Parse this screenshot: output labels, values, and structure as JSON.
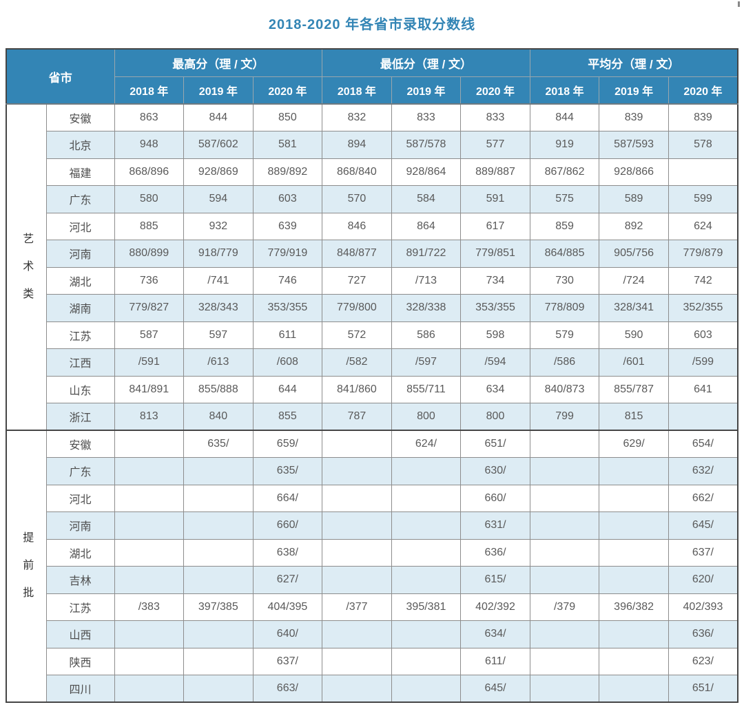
{
  "page": {
    "title": "2018-2020 年各省市录取分数线"
  },
  "colors": {
    "header_bg": "#3385b5",
    "title_text": "#3385b5",
    "alt_row_bg": "#ddecf4",
    "cell_text": "#595959",
    "inner_border": "#8c8c8c",
    "outer_border": "#454545"
  },
  "table": {
    "header": {
      "province_label": "省市",
      "groups": [
        {
          "label": "最高分（理 / 文）"
        },
        {
          "label": "最低分（理 / 文）"
        },
        {
          "label": "平均分（理 / 文）"
        }
      ],
      "years": [
        "2018 年",
        "2019 年",
        "2020 年"
      ]
    },
    "sections": [
      {
        "category": "艺术类",
        "rows": [
          {
            "province": "安徽",
            "values": [
              "863",
              "844",
              "850",
              "832",
              "833",
              "833",
              "844",
              "839",
              "839"
            ]
          },
          {
            "province": "北京",
            "values": [
              "948",
              "587/602",
              "581",
              "894",
              "587/578",
              "577",
              "919",
              "587/593",
              "578"
            ]
          },
          {
            "province": "福建",
            "values": [
              "868/896",
              "928/869",
              "889/892",
              "868/840",
              "928/864",
              "889/887",
              "867/862",
              "928/866",
              ""
            ]
          },
          {
            "province": "广东",
            "values": [
              "580",
              "594",
              "603",
              "570",
              "584",
              "591",
              "575",
              "589",
              "599"
            ]
          },
          {
            "province": "河北",
            "values": [
              "885",
              "932",
              "639",
              "846",
              "864",
              "617",
              "859",
              "892",
              "624"
            ]
          },
          {
            "province": "河南",
            "values": [
              "880/899",
              "918/779",
              "779/919",
              "848/877",
              "891/722",
              "779/851",
              "864/885",
              "905/756",
              "779/879"
            ]
          },
          {
            "province": "湖北",
            "values": [
              "736",
              "/741",
              "746",
              "727",
              "/713",
              "734",
              "730",
              "/724",
              "742"
            ]
          },
          {
            "province": "湖南",
            "values": [
              "779/827",
              "328/343",
              "353/355",
              "779/800",
              "328/338",
              "353/355",
              "778/809",
              "328/341",
              "352/355"
            ]
          },
          {
            "province": "江苏",
            "values": [
              "587",
              "597",
              "611",
              "572",
              "586",
              "598",
              "579",
              "590",
              "603"
            ]
          },
          {
            "province": "江西",
            "values": [
              "/591",
              "/613",
              "/608",
              "/582",
              "/597",
              "/594",
              "/586",
              "/601",
              "/599"
            ]
          },
          {
            "province": "山东",
            "values": [
              "841/891",
              "855/888",
              "644",
              "841/860",
              "855/711",
              "634",
              "840/873",
              "855/787",
              "641"
            ]
          },
          {
            "province": "浙江",
            "values": [
              "813",
              "840",
              "855",
              "787",
              "800",
              "800",
              "799",
              "815",
              ""
            ]
          }
        ]
      },
      {
        "category": "提前批",
        "rows": [
          {
            "province": "安徽",
            "values": [
              "",
              "635/",
              "659/",
              "",
              "624/",
              "651/",
              "",
              "629/",
              "654/"
            ]
          },
          {
            "province": "广东",
            "values": [
              "",
              "",
              "635/",
              "",
              "",
              "630/",
              "",
              "",
              "632/"
            ]
          },
          {
            "province": "河北",
            "values": [
              "",
              "",
              "664/",
              "",
              "",
              "660/",
              "",
              "",
              "662/"
            ]
          },
          {
            "province": "河南",
            "values": [
              "",
              "",
              "660/",
              "",
              "",
              "631/",
              "",
              "",
              "645/"
            ]
          },
          {
            "province": "湖北",
            "values": [
              "",
              "",
              "638/",
              "",
              "",
              "636/",
              "",
              "",
              "637/"
            ]
          },
          {
            "province": "吉林",
            "values": [
              "",
              "",
              "627/",
              "",
              "",
              "615/",
              "",
              "",
              "620/"
            ]
          },
          {
            "province": "江苏",
            "values": [
              "/383",
              "397/385",
              "404/395",
              "/377",
              "395/381",
              "402/392",
              "/379",
              "396/382",
              "402/393"
            ]
          },
          {
            "province": "山西",
            "values": [
              "",
              "",
              "640/",
              "",
              "",
              "634/",
              "",
              "",
              "636/"
            ]
          },
          {
            "province": "陕西",
            "values": [
              "",
              "",
              "637/",
              "",
              "",
              "611/",
              "",
              "",
              "623/"
            ]
          },
          {
            "province": "四川",
            "values": [
              "",
              "",
              "663/",
              "",
              "",
              "645/",
              "",
              "",
              "651/"
            ]
          }
        ]
      }
    ]
  }
}
